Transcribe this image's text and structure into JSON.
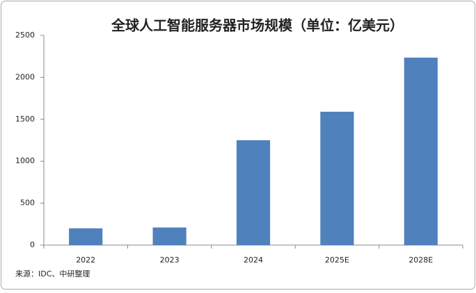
{
  "chart_data": {
    "type": "bar",
    "title": "全球人工智能服务器市场规模（单位：亿美元）",
    "categories": [
      "2022",
      "2023",
      "2024",
      "2025E",
      "2028E"
    ],
    "values": [
      200,
      210,
      1250,
      1590,
      2235
    ],
    "color": "#4f81bd",
    "ylim": [
      0,
      2500
    ],
    "yticks": [
      0,
      500,
      1000,
      1500,
      2000,
      2500
    ],
    "grid": false,
    "source": "来源：IDC、中研整理"
  }
}
